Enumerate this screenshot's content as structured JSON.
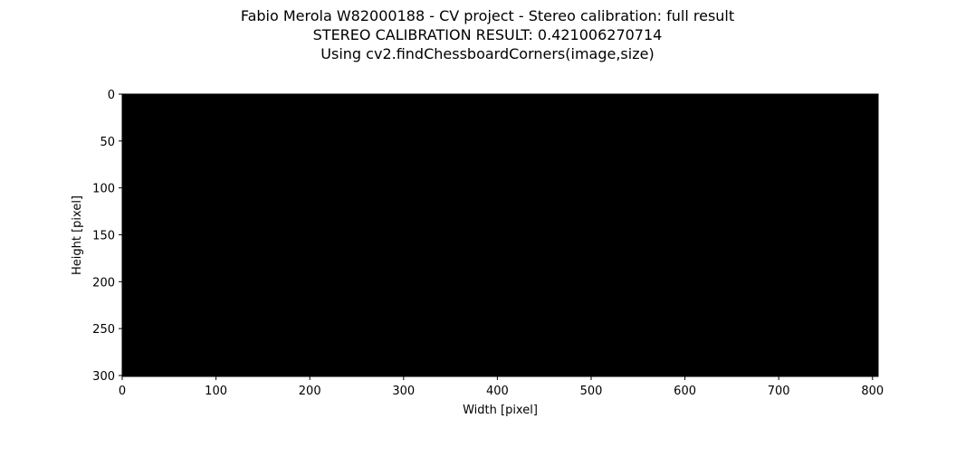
{
  "chart_data": {
    "type": "heatmap",
    "title": [
      "Fabio Merola W82000188 - CV project - Stereo calibration: full result",
      "STEREO CALIBRATION RESULT: 0.421006270714",
      "Using cv2.findChessboardCorners(image,size)"
    ],
    "xlabel": "Width [pixel]",
    "ylabel": "Height [pixel]",
    "xlim": [
      0,
      806
    ],
    "ylim": [
      301,
      0
    ],
    "x_ticks": [
      0,
      100,
      200,
      300,
      400,
      500,
      600,
      700,
      800
    ],
    "y_ticks": [
      0,
      50,
      100,
      150,
      200,
      250,
      300
    ],
    "image_fill": "#000000",
    "grid": false
  }
}
